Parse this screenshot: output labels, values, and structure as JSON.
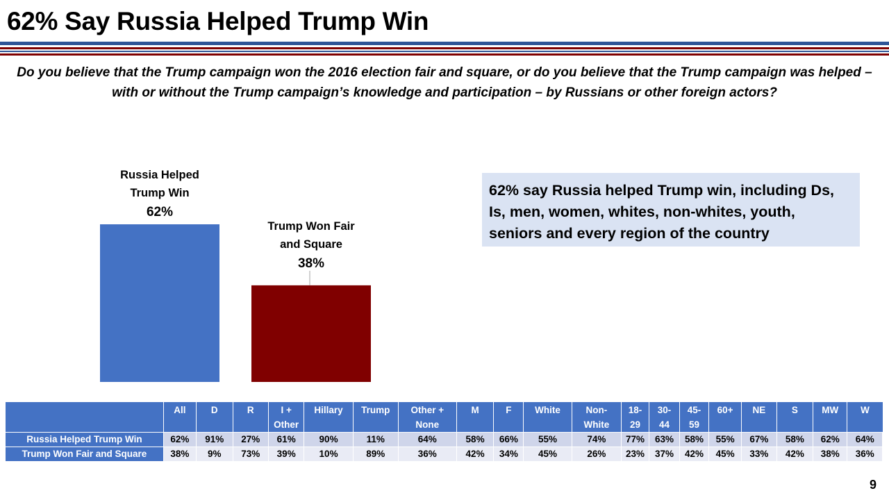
{
  "page": {
    "title": "62% Say Russia Helped Trump Win",
    "question": "Do you believe that the Trump campaign won the 2016 election fair and square, or do you believe that the Trump campaign was helped – with or without the Trump campaign’s knowledge and participation – by Russians or other foreign actors?",
    "callout": "62% say Russia helped Trump win, including Ds, Is, men, women, whites, non-whites, youth, seniors and every region of the country",
    "page_number": "9"
  },
  "colors": {
    "title_rule_blue": "#2f5597",
    "title_rule_red": "#7f0000",
    "bar_blue": "#4472c4",
    "bar_red": "#800000",
    "callout_bg": "#dae3f3",
    "table_header": "#4472c4"
  },
  "chart_data": {
    "type": "bar",
    "title": "",
    "categories": [
      "Russia Helped Trump Win",
      "Trump Won Fair and Square"
    ],
    "category_label_lines": [
      [
        "Russia Helped",
        "Trump Win"
      ],
      [
        "Trump Won Fair",
        "and Square"
      ]
    ],
    "values": [
      62,
      38
    ],
    "value_labels": [
      "62%",
      "38%"
    ],
    "colors": [
      "#4472c4",
      "#800000"
    ],
    "xlabel": "",
    "ylabel": "",
    "ylim": [
      0,
      62
    ],
    "grid": false,
    "legend": "none"
  },
  "table": {
    "columns": [
      [
        "All"
      ],
      [
        "D"
      ],
      [
        "R"
      ],
      [
        "I +",
        "Other"
      ],
      [
        "Hillary"
      ],
      [
        "Trump"
      ],
      [
        "Other +",
        "None"
      ],
      [
        "M"
      ],
      [
        "F"
      ],
      [
        "White"
      ],
      [
        "Non-",
        "White"
      ],
      [
        "18-",
        "29"
      ],
      [
        "30-",
        "44"
      ],
      [
        "45-",
        "59"
      ],
      [
        "60+"
      ],
      [
        "NE"
      ],
      [
        "S"
      ],
      [
        "MW"
      ],
      [
        "W"
      ]
    ],
    "rows": [
      {
        "label": "Russia Helped Trump Win",
        "values": [
          "62%",
          "91%",
          "27%",
          "61%",
          "90%",
          "11%",
          "64%",
          "58%",
          "66%",
          "55%",
          "74%",
          "77%",
          "63%",
          "58%",
          "55%",
          "67%",
          "58%",
          "62%",
          "64%"
        ]
      },
      {
        "label": "Trump Won Fair and Square",
        "values": [
          "38%",
          "9%",
          "73%",
          "39%",
          "10%",
          "89%",
          "36%",
          "42%",
          "34%",
          "45%",
          "26%",
          "23%",
          "37%",
          "42%",
          "45%",
          "33%",
          "42%",
          "38%",
          "36%"
        ]
      }
    ]
  }
}
